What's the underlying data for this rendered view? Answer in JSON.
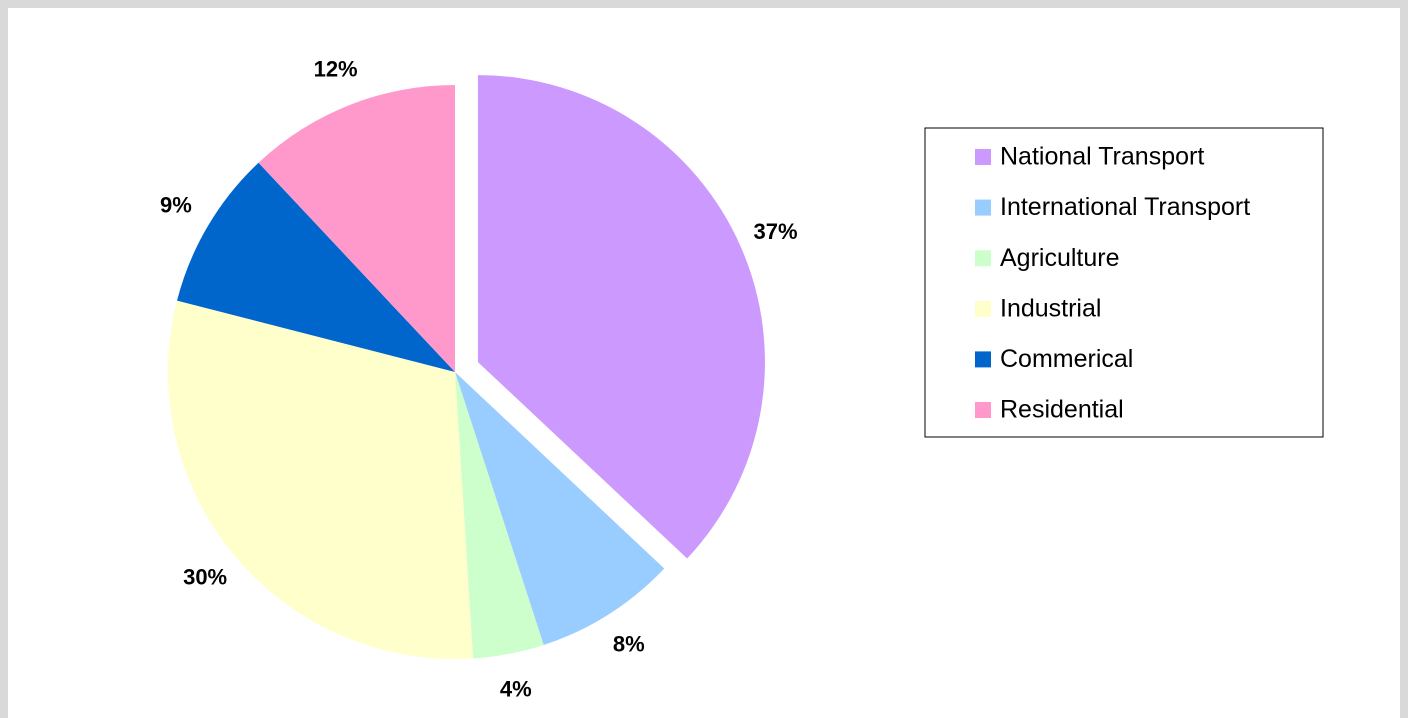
{
  "chart_data": {
    "type": "pie",
    "categories": [
      "National Transport",
      "International Transport",
      "Agriculture",
      "Industrial",
      "Commerical",
      "Residential"
    ],
    "values": [
      37,
      8,
      4,
      30,
      9,
      12
    ],
    "value_labels": [
      "37%",
      "8%",
      "4%",
      "30%",
      "9%",
      "12%"
    ],
    "colors": [
      "#cc99ff",
      "#99ccff",
      "#ccffcc",
      "#ffffcc",
      "#0066cc",
      "#ff99cc"
    ],
    "legend": "right"
  }
}
